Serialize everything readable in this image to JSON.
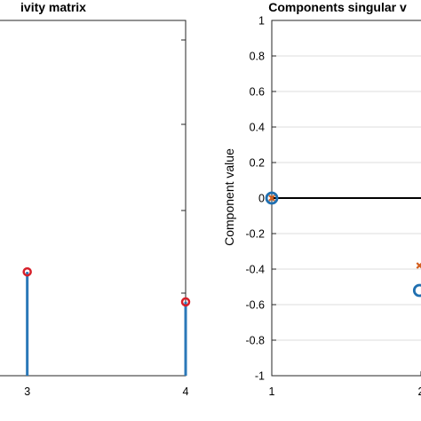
{
  "chart_data": [
    {
      "type": "stem",
      "title": "ivity matrix",
      "x": [
        3,
        4
      ],
      "values": [
        0.38,
        0.27
      ],
      "xlim": [
        2.8,
        4.0
      ],
      "ylim": [
        0,
        1.3
      ],
      "xticks": [
        3,
        4
      ],
      "xtick_labels": [
        "3",
        "4"
      ],
      "grid": false,
      "colors": {
        "stem": "#2a78b8",
        "marker": "#d6202a"
      }
    },
    {
      "type": "scatter",
      "title": "Components singular v",
      "ylabel": "Component value",
      "xlim": [
        1,
        2.0
      ],
      "ylim": [
        -1,
        1
      ],
      "xticks": [
        1,
        2
      ],
      "xtick_labels": [
        "1",
        "2"
      ],
      "yticks": [
        1,
        0.8,
        0.6,
        0.4,
        0.2,
        0,
        -0.2,
        -0.4,
        -0.6,
        -0.8,
        -1
      ],
      "ytick_labels": [
        "1",
        "0.8",
        "0.6",
        "0.4",
        "0.2",
        "0",
        "-0.2",
        "-0.4",
        "-0.6",
        "-0.8",
        "-1"
      ],
      "grid": true,
      "zero_line": true,
      "series": [
        {
          "marker": "circle",
          "color": "#1f6fb0",
          "points": [
            [
              1,
              0
            ],
            [
              1.99,
              -0.52
            ]
          ]
        },
        {
          "marker": "x",
          "color": "#d35f1f",
          "points": [
            [
              1,
              0
            ],
            [
              1.99,
              -0.38
            ]
          ]
        }
      ]
    }
  ]
}
